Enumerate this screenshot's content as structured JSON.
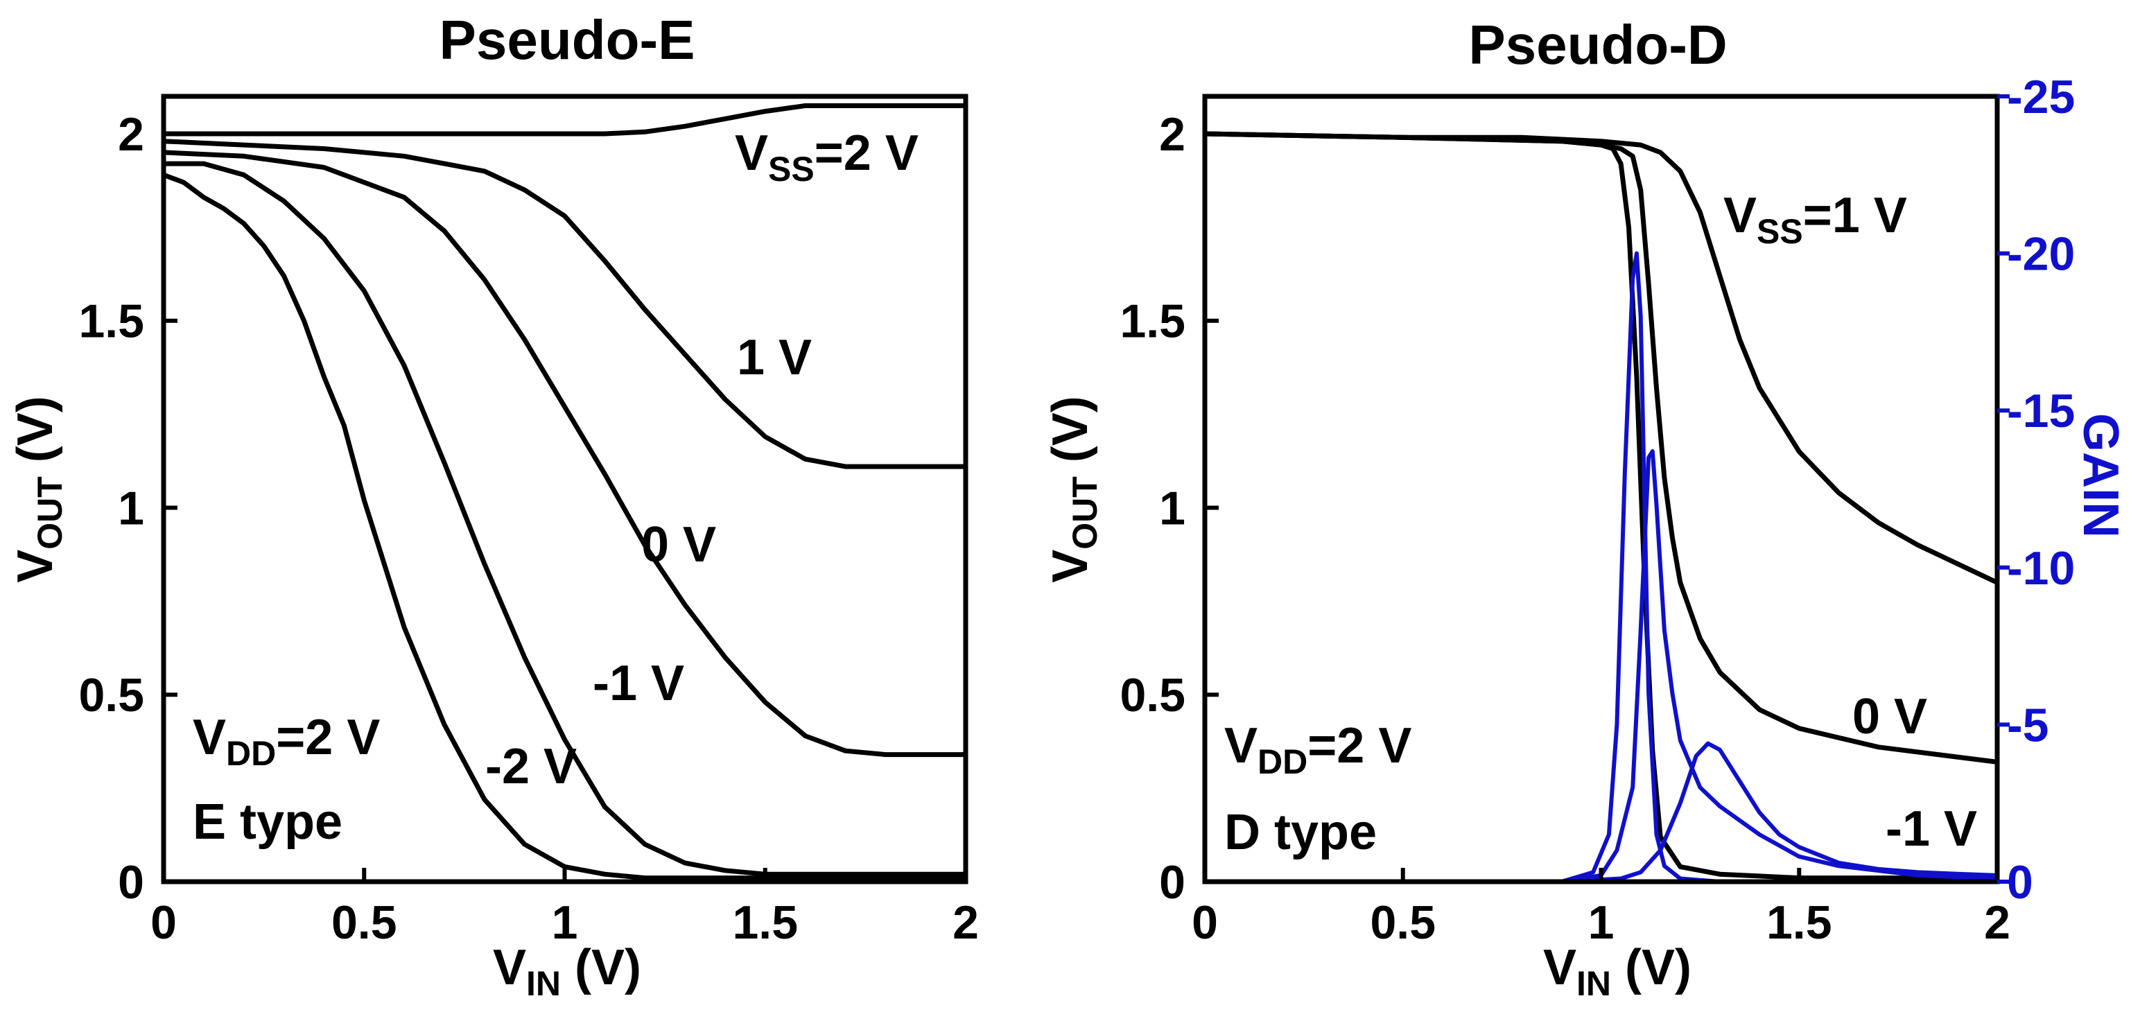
{
  "chart_data": [
    {
      "type": "line",
      "title": "Pseudo-E",
      "xlabel": {
        "main": "V",
        "sub": "IN",
        "unit": " (V)"
      },
      "ylabel": {
        "main": "V",
        "sub": "OUT",
        "unit": " (V)"
      },
      "xlim": [
        0,
        2
      ],
      "ylim": [
        0,
        2.1
      ],
      "xticks": [
        0,
        0.5,
        1,
        1.5,
        2
      ],
      "xtick_labels": [
        "0",
        "0.5",
        "1",
        "1.5",
        "2"
      ],
      "yticks": [
        0,
        0.5,
        1,
        1.5,
        2
      ],
      "ytick_labels": [
        "0",
        "0.5",
        "1",
        "1.5",
        "2"
      ],
      "box_lines": [
        {
          "main": "V",
          "sub": "DD",
          "rest": "=2 V"
        },
        {
          "text": "E type"
        }
      ],
      "series": [
        {
          "name": "2 V",
          "label_parts": {
            "main": "V",
            "sub": "SS",
            "rest": "=2 V"
          },
          "color": "#000000",
          "x": [
            0,
            0.3,
            0.6,
            0.9,
            1.1,
            1.2,
            1.3,
            1.4,
            1.5,
            1.6,
            1.8,
            2.0
          ],
          "y": [
            2.0,
            2.0,
            2.0,
            2.0,
            2.0,
            2.005,
            2.02,
            2.04,
            2.06,
            2.075,
            2.075,
            2.075
          ]
        },
        {
          "name": "1 V",
          "label": "1 V",
          "color": "#000000",
          "x": [
            0,
            0.2,
            0.4,
            0.6,
            0.8,
            0.9,
            1.0,
            1.1,
            1.2,
            1.3,
            1.4,
            1.5,
            1.6,
            1.7,
            1.8,
            1.9,
            2.0
          ],
          "y": [
            1.98,
            1.97,
            1.96,
            1.94,
            1.9,
            1.85,
            1.78,
            1.66,
            1.53,
            1.41,
            1.29,
            1.19,
            1.13,
            1.11,
            1.11,
            1.11,
            1.11
          ]
        },
        {
          "name": "0 V",
          "label": "0 V",
          "color": "#000000",
          "x": [
            0,
            0.2,
            0.4,
            0.6,
            0.7,
            0.8,
            0.9,
            1.0,
            1.1,
            1.2,
            1.3,
            1.4,
            1.5,
            1.6,
            1.7,
            1.8,
            1.9,
            2.0
          ],
          "y": [
            1.95,
            1.94,
            1.91,
            1.83,
            1.74,
            1.61,
            1.45,
            1.27,
            1.09,
            0.9,
            0.74,
            0.6,
            0.48,
            0.39,
            0.35,
            0.34,
            0.34,
            0.34
          ]
        },
        {
          "name": "-1 V",
          "label": "-1 V",
          "color": "#000000",
          "x": [
            0,
            0.1,
            0.2,
            0.3,
            0.4,
            0.5,
            0.6,
            0.7,
            0.8,
            0.9,
            1.0,
            1.1,
            1.2,
            1.3,
            1.4,
            1.5,
            1.7,
            2.0
          ],
          "y": [
            1.92,
            1.92,
            1.89,
            1.82,
            1.72,
            1.58,
            1.38,
            1.12,
            0.85,
            0.6,
            0.38,
            0.2,
            0.1,
            0.05,
            0.03,
            0.02,
            0.02,
            0.02
          ]
        },
        {
          "name": "-2 V",
          "label": "-2 V",
          "color": "#000000",
          "x": [
            0,
            0.05,
            0.1,
            0.15,
            0.2,
            0.25,
            0.3,
            0.35,
            0.4,
            0.45,
            0.5,
            0.55,
            0.6,
            0.7,
            0.8,
            0.9,
            1.0,
            1.1,
            1.2,
            1.5,
            2.0
          ],
          "y": [
            1.89,
            1.87,
            1.83,
            1.8,
            1.76,
            1.7,
            1.62,
            1.5,
            1.35,
            1.22,
            1.02,
            0.85,
            0.68,
            0.42,
            0.22,
            0.1,
            0.04,
            0.02,
            0.01,
            0.01,
            0.01
          ]
        }
      ]
    },
    {
      "type": "line",
      "title": "Pseudo-D",
      "xlabel": {
        "main": "V",
        "sub": "IN",
        "unit": " (V)"
      },
      "ylabel": {
        "main": "V",
        "sub": "OUT",
        "unit": " (V)"
      },
      "y2label": "GAIN",
      "xlim": [
        0,
        2
      ],
      "ylim": [
        0,
        2.1
      ],
      "y2lim": [
        0,
        -25
      ],
      "xticks": [
        0,
        0.5,
        1,
        1.5,
        2
      ],
      "xtick_labels": [
        "0",
        "0.5",
        "1",
        "1.5",
        "2"
      ],
      "yticks": [
        0,
        0.5,
        1,
        1.5,
        2
      ],
      "ytick_labels": [
        "0",
        "0.5",
        "1",
        "1.5",
        "2"
      ],
      "y2ticks": [
        0,
        -5,
        -10,
        -15,
        -20,
        -25
      ],
      "y2tick_labels": [
        "0",
        "-5",
        "-10",
        "-15",
        "-20",
        "-25"
      ],
      "box_lines": [
        {
          "main": "V",
          "sub": "DD",
          "rest": "=2 V"
        },
        {
          "text": "D type"
        }
      ],
      "series": [
        {
          "name": "1 V",
          "label_parts": {
            "main": "V",
            "sub": "SS",
            "rest": "=1 V"
          },
          "color": "#000000",
          "axis": "left",
          "x": [
            0,
            0.5,
            0.8,
            1.0,
            1.1,
            1.15,
            1.2,
            1.25,
            1.3,
            1.35,
            1.4,
            1.5,
            1.6,
            1.7,
            1.8,
            1.9,
            2.0
          ],
          "y": [
            2.0,
            1.99,
            1.99,
            1.98,
            1.97,
            1.95,
            1.9,
            1.79,
            1.62,
            1.45,
            1.32,
            1.15,
            1.04,
            0.96,
            0.9,
            0.85,
            0.8
          ]
        },
        {
          "name": "0 V",
          "label": "0 V",
          "color": "#000000",
          "axis": "left",
          "x": [
            0,
            0.5,
            0.9,
            1.0,
            1.05,
            1.08,
            1.1,
            1.12,
            1.14,
            1.16,
            1.18,
            1.2,
            1.25,
            1.3,
            1.4,
            1.5,
            1.7,
            2.0
          ],
          "y": [
            2.0,
            1.99,
            1.98,
            1.97,
            1.96,
            1.94,
            1.85,
            1.6,
            1.32,
            1.08,
            0.92,
            0.8,
            0.65,
            0.56,
            0.46,
            0.41,
            0.36,
            0.32
          ]
        },
        {
          "name": "-1 V",
          "label": "-1 V",
          "color": "#000000",
          "axis": "left",
          "x": [
            0,
            0.5,
            0.9,
            1.0,
            1.03,
            1.05,
            1.07,
            1.09,
            1.11,
            1.13,
            1.15,
            1.2,
            1.3,
            1.5,
            2.0
          ],
          "y": [
            2.0,
            1.99,
            1.98,
            1.97,
            1.96,
            1.92,
            1.75,
            1.35,
            0.8,
            0.35,
            0.12,
            0.04,
            0.02,
            0.01,
            0.01
          ]
        },
        {
          "name": "GAIN -1 V",
          "color": "#1010cc",
          "axis": "right",
          "x": [
            0,
            0.9,
            0.98,
            1.02,
            1.04,
            1.06,
            1.08,
            1.09,
            1.1,
            1.12,
            1.14,
            1.16,
            1.2,
            1.3,
            1.5,
            2.0
          ],
          "y": [
            0,
            0,
            -0.3,
            -1.5,
            -5,
            -13,
            -19.2,
            -20,
            -18,
            -6,
            -1.5,
            -0.5,
            -0.1,
            0,
            0,
            0
          ]
        },
        {
          "name": "GAIN 0 V",
          "color": "#1010cc",
          "axis": "right",
          "x": [
            0,
            0.9,
            1.0,
            1.04,
            1.08,
            1.1,
            1.12,
            1.13,
            1.14,
            1.16,
            1.18,
            1.2,
            1.25,
            1.3,
            1.4,
            1.5,
            1.6,
            1.8,
            2.0
          ],
          "y": [
            0,
            0,
            -0.2,
            -1,
            -3,
            -8,
            -13.5,
            -13.7,
            -12,
            -8,
            -6,
            -4.5,
            -3,
            -2.4,
            -1.5,
            -0.8,
            -0.5,
            -0.2,
            -0.1
          ]
        },
        {
          "name": "GAIN 1 V",
          "color": "#1010cc",
          "axis": "right",
          "x": [
            0,
            0.9,
            1.05,
            1.1,
            1.15,
            1.2,
            1.24,
            1.27,
            1.3,
            1.35,
            1.4,
            1.45,
            1.5,
            1.6,
            1.7,
            1.8,
            1.9,
            2.0
          ],
          "y": [
            0,
            0,
            -0.1,
            -0.3,
            -1,
            -2.5,
            -4,
            -4.4,
            -4.2,
            -3.2,
            -2.2,
            -1.5,
            -1.1,
            -0.6,
            -0.4,
            -0.3,
            -0.25,
            -0.2
          ]
        }
      ]
    }
  ]
}
